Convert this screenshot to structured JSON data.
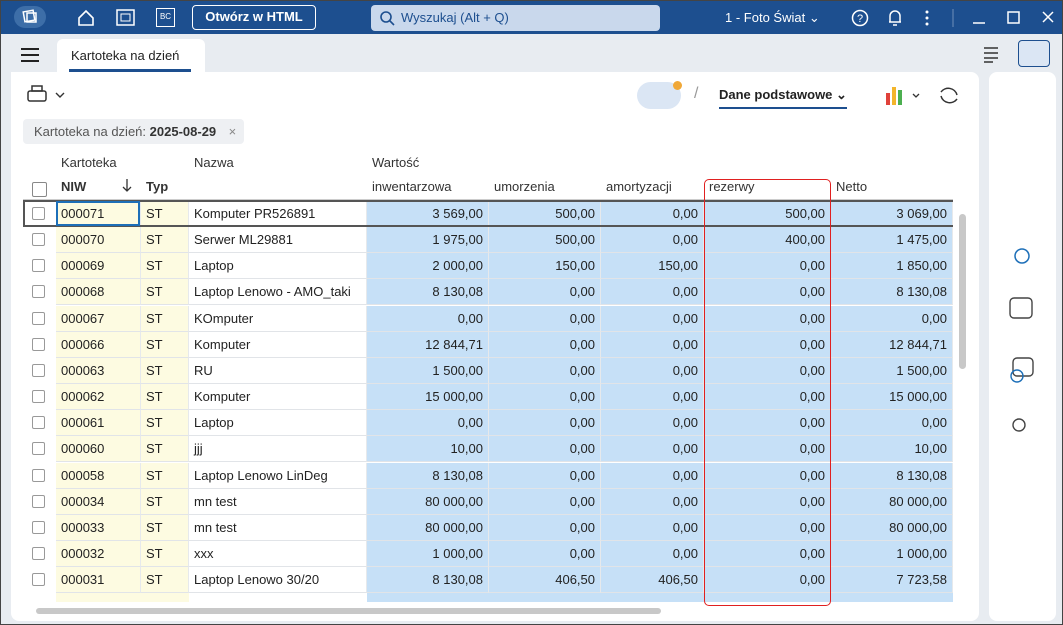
{
  "topbar": {
    "bc": "BC",
    "button": "Otwórz w HTML",
    "search": "Wyszukaj (Alt + Q)",
    "company": "1 - Foto Świat"
  },
  "tab": "Kartoteka na dzień",
  "toolbar": {
    "view": "Dane podstawowe"
  },
  "filter": {
    "label": "Kartoteka na dzień:",
    "value": "2025-08-29"
  },
  "table": {
    "groups": [
      "Kartoteka",
      "Nazwa",
      "Wartość"
    ],
    "columns": [
      "NIW",
      "Typ",
      "inwentarzowa",
      "umorzenia",
      "amortyzacji",
      "rezerwy",
      "Netto"
    ],
    "rows": [
      [
        "000071",
        "ST",
        "Komputer PR526891",
        "3 569,00",
        "500,00",
        "0,00",
        "500,00",
        "3 069,00"
      ],
      [
        "000070",
        "ST",
        "Serwer ML29881",
        "1 975,00",
        "500,00",
        "0,00",
        "400,00",
        "1 475,00"
      ],
      [
        "000069",
        "ST",
        "Laptop",
        "2 000,00",
        "150,00",
        "150,00",
        "0,00",
        "1 850,00"
      ],
      [
        "000068",
        "ST",
        "Laptop Lenowo - AMO_taki",
        "8 130,08",
        "0,00",
        "0,00",
        "0,00",
        "8 130,08"
      ],
      [
        "000067",
        "ST",
        "KOmputer",
        "0,00",
        "0,00",
        "0,00",
        "0,00",
        "0,00"
      ],
      [
        "000066",
        "ST",
        "Komputer",
        "12 844,71",
        "0,00",
        "0,00",
        "0,00",
        "12 844,71"
      ],
      [
        "000063",
        "ST",
        "RU",
        "1 500,00",
        "0,00",
        "0,00",
        "0,00",
        "1 500,00"
      ],
      [
        "000062",
        "ST",
        "Komputer",
        "15 000,00",
        "0,00",
        "0,00",
        "0,00",
        "15 000,00"
      ],
      [
        "000061",
        "ST",
        "Laptop",
        "0,00",
        "0,00",
        "0,00",
        "0,00",
        "0,00"
      ],
      [
        "000060",
        "ST",
        "jjj",
        "10,00",
        "0,00",
        "0,00",
        "0,00",
        "10,00"
      ],
      [
        "000058",
        "ST",
        "Laptop Lenowo LinDeg",
        "8 130,08",
        "0,00",
        "0,00",
        "0,00",
        "8 130,08"
      ],
      [
        "000034",
        "ST",
        "mn test",
        "80 000,00",
        "0,00",
        "0,00",
        "0,00",
        "80 000,00"
      ],
      [
        "000033",
        "ST",
        "mn test",
        "80 000,00",
        "0,00",
        "0,00",
        "0,00",
        "80 000,00"
      ],
      [
        "000032",
        "ST",
        "xxx",
        "1 000,00",
        "0,00",
        "0,00",
        "0,00",
        "1 000,00"
      ],
      [
        "000031",
        "ST",
        "Laptop Lenowo 30/20",
        "8 130,08",
        "406,50",
        "406,50",
        "0,00",
        "7 723,58"
      ]
    ]
  }
}
